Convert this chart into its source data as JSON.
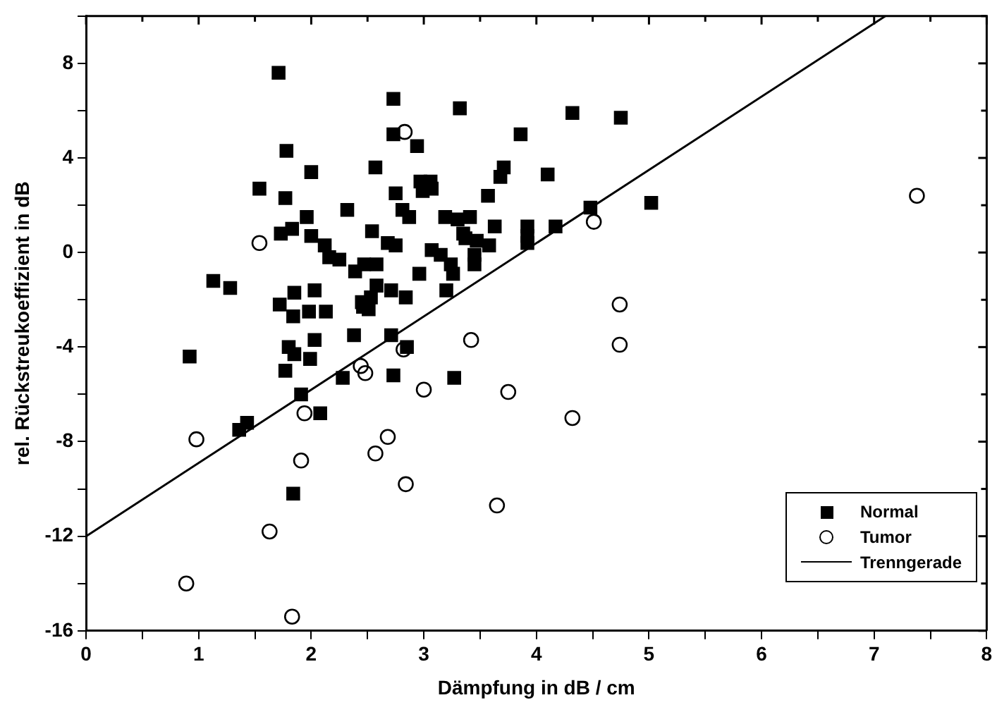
{
  "chart_data": {
    "type": "scatter",
    "xlabel": "Dämpfung in dB / cm",
    "ylabel": "rel. Rückstreukoeffizient in dB",
    "xlim": [
      0,
      8
    ],
    "ylim": [
      -16,
      10
    ],
    "xticks": [
      0,
      {
        "value": 0.5,
        "label": null
      },
      1,
      {
        "value": 1.5,
        "label": null
      },
      2,
      {
        "value": 2.5,
        "label": null
      },
      3,
      {
        "value": 3.5,
        "label": null
      },
      4,
      {
        "value": 4.5,
        "label": null
      },
      5,
      {
        "value": 5.5,
        "label": null
      },
      6,
      {
        "value": 6.5,
        "label": null
      },
      7,
      {
        "value": 7.5,
        "label": null
      },
      8
    ],
    "yticks": [
      -16,
      {
        "value": -14,
        "label": null
      },
      -12,
      {
        "value": -10,
        "label": null
      },
      -8,
      {
        "value": -6,
        "label": null
      },
      -4,
      {
        "value": -2,
        "label": null
      },
      0,
      {
        "value": 2,
        "label": null
      },
      4,
      {
        "value": 6,
        "label": null
      },
      8,
      {
        "value": 10,
        "label": null
      }
    ],
    "grid": false,
    "legend": "bottom right",
    "series": [
      {
        "name": "Normal",
        "marker": "square",
        "color": "#000000",
        "x": [
          1.71,
          1.78,
          2.0,
          1.54,
          1.77,
          2.32,
          2.57,
          1.96,
          1.73,
          1.83,
          2.0,
          2.12,
          2.16,
          2.25,
          2.39,
          2.47,
          2.54,
          1.13,
          1.28,
          1.85,
          2.03,
          1.72,
          1.84,
          1.98,
          2.13,
          2.46,
          2.53,
          2.38,
          2.03,
          1.8,
          1.85,
          1.99,
          0.92,
          1.77,
          2.71,
          2.73,
          2.28,
          1.91,
          2.08,
          1.36,
          1.43,
          1.84,
          2.73,
          3.32,
          4.32,
          4.75,
          2.73,
          2.94,
          3.86,
          3.71,
          3.68,
          4.1,
          2.97,
          3.06,
          2.99,
          3.07,
          2.75,
          3.57,
          2.81,
          2.87,
          3.19,
          3.3,
          3.41,
          4.48,
          5.02,
          3.35,
          3.37,
          3.63,
          3.92,
          3.92,
          3.92,
          4.17,
          2.68,
          2.75,
          2.58,
          3.07,
          3.15,
          3.47,
          3.58,
          3.24,
          3.26,
          3.45,
          3.45,
          2.96,
          2.58,
          2.71,
          2.84,
          3.2,
          2.45,
          2.51,
          2.85,
          3.27
        ],
        "values": [
          7.6,
          4.3,
          3.4,
          2.7,
          2.3,
          1.8,
          3.6,
          1.5,
          0.8,
          1.0,
          0.7,
          0.3,
          -0.2,
          -0.3,
          -0.8,
          -0.5,
          0.9,
          -1.2,
          -1.5,
          -1.7,
          -1.6,
          -2.2,
          -2.7,
          -2.5,
          -2.5,
          -2.3,
          -1.9,
          -3.5,
          -3.7,
          -4.0,
          -4.3,
          -4.5,
          -4.4,
          -5.0,
          -3.5,
          -5.2,
          -5.3,
          -6.0,
          -6.8,
          -7.5,
          -7.2,
          -10.2,
          6.5,
          6.1,
          5.9,
          5.7,
          5.0,
          4.5,
          5.0,
          3.6,
          3.2,
          3.3,
          3.0,
          3.0,
          2.6,
          2.7,
          2.5,
          2.4,
          1.8,
          1.5,
          1.5,
          1.4,
          1.5,
          1.9,
          2.1,
          0.8,
          0.6,
          1.1,
          1.1,
          0.7,
          0.4,
          1.1,
          0.4,
          0.3,
          -0.5,
          0.1,
          -0.1,
          0.5,
          0.3,
          -0.5,
          -0.9,
          -0.1,
          -0.5,
          -0.9,
          -1.4,
          -1.6,
          -1.9,
          -1.6,
          -2.1,
          -2.4,
          -4.0,
          -5.3
        ]
      },
      {
        "name": "Tumor",
        "marker": "circle",
        "color": "#000000",
        "x": [
          0.89,
          0.98,
          1.54,
          1.63,
          1.83,
          1.91,
          1.94,
          2.44,
          2.48,
          2.57,
          2.68,
          2.82,
          2.83,
          2.84,
          3.0,
          3.42,
          3.65,
          3.75,
          4.32,
          4.51,
          4.74,
          4.74,
          7.38
        ],
        "values": [
          -14.0,
          -7.9,
          0.4,
          -11.8,
          -15.4,
          -8.8,
          -6.8,
          -4.8,
          -5.1,
          -8.5,
          -7.8,
          -4.1,
          5.1,
          -9.8,
          -5.8,
          -3.7,
          -10.7,
          -5.9,
          -7.0,
          1.3,
          -2.2,
          -3.9,
          2.4
        ]
      },
      {
        "name": "Trenngerade",
        "type": "line",
        "marker": "none",
        "line_style": "solid",
        "color": "#000000",
        "x": [
          0,
          7.1
        ],
        "values": [
          -12,
          10
        ]
      }
    ]
  }
}
